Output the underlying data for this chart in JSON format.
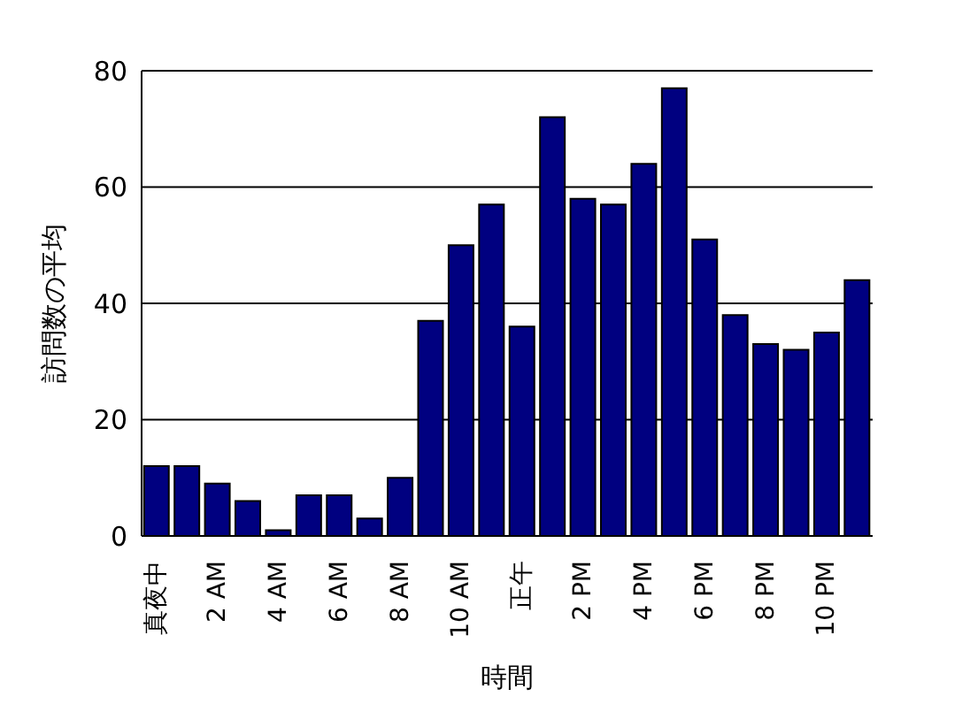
{
  "chart_data": {
    "type": "bar",
    "xlabel": "時間",
    "ylabel": "訪問数の平均",
    "categories": [
      "真夜中",
      null,
      "2 AM",
      null,
      "4 AM",
      null,
      "6 AM",
      null,
      "8 AM",
      null,
      "10 AM",
      null,
      "正午",
      null,
      "2 PM",
      null,
      "4 PM",
      null,
      "6 PM",
      null,
      "8 PM",
      null,
      "10 PM",
      null
    ],
    "values": [
      12,
      12,
      9,
      6,
      1,
      7,
      7,
      3,
      10,
      37,
      50,
      57,
      36,
      72,
      58,
      57,
      64,
      77,
      51,
      38,
      33,
      32,
      35,
      44
    ],
    "color": "#000080",
    "ylim": [
      0,
      80
    ],
    "yticks": [
      0,
      20,
      40,
      60,
      80
    ],
    "grid": "y"
  }
}
